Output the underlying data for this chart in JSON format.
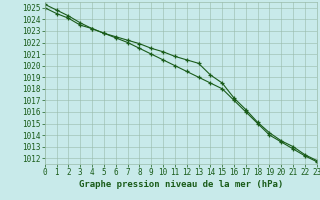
{
  "title": "Graphe pression niveau de la mer (hPa)",
  "x_max": 23,
  "ylim": [
    1011.5,
    1025.5
  ],
  "yticks": [
    1012,
    1013,
    1014,
    1015,
    1016,
    1017,
    1018,
    1019,
    1020,
    1021,
    1022,
    1023,
    1024,
    1025
  ],
  "xticks": [
    0,
    1,
    2,
    3,
    4,
    5,
    6,
    7,
    8,
    9,
    10,
    11,
    12,
    13,
    14,
    15,
    16,
    17,
    18,
    19,
    20,
    21,
    22,
    23
  ],
  "bg_color": "#c8eaea",
  "grid_color": "#99bbaa",
  "line_color": "#1a5c1a",
  "series1_x": [
    0,
    1,
    2,
    3,
    4,
    5,
    6,
    7,
    8,
    9,
    10,
    11,
    12,
    13,
    14,
    15,
    16,
    17,
    18,
    19,
    20,
    21,
    22,
    23
  ],
  "series1_y": [
    1025.0,
    1024.5,
    1024.1,
    1023.5,
    1023.2,
    1022.8,
    1022.5,
    1022.2,
    1021.9,
    1021.5,
    1021.2,
    1020.8,
    1020.5,
    1020.2,
    1019.2,
    1018.5,
    1017.2,
    1016.2,
    1015.1,
    1014.2,
    1013.5,
    1013.0,
    1012.3,
    1011.8
  ],
  "series2_x": [
    0,
    1,
    2,
    3,
    4,
    5,
    6,
    7,
    8,
    9,
    10,
    11,
    12,
    13,
    14,
    15,
    16,
    17,
    18,
    19,
    20,
    21,
    22,
    23
  ],
  "series2_y": [
    1025.3,
    1024.8,
    1024.3,
    1023.7,
    1023.2,
    1022.8,
    1022.4,
    1022.0,
    1021.5,
    1021.0,
    1020.5,
    1020.0,
    1019.5,
    1019.0,
    1018.5,
    1018.0,
    1017.0,
    1016.0,
    1015.0,
    1014.0,
    1013.4,
    1012.8,
    1012.2,
    1011.7
  ],
  "title_fontsize": 6.5,
  "tick_fontsize": 5.5
}
